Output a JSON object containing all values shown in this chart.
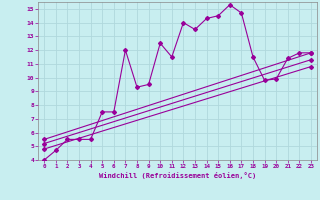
{
  "background_color": "#c8eef0",
  "grid_color": "#b0d8dc",
  "line_color": "#990099",
  "marker": "D",
  "markersize": 2,
  "xlabel": "Windchill (Refroidissement éolien,°C)",
  "xlim": [
    -0.5,
    23.5
  ],
  "ylim": [
    4,
    15.5
  ],
  "yticks": [
    4,
    5,
    6,
    7,
    8,
    9,
    10,
    11,
    12,
    13,
    14,
    15
  ],
  "xticks": [
    0,
    1,
    2,
    3,
    4,
    5,
    6,
    7,
    8,
    9,
    10,
    11,
    12,
    13,
    14,
    15,
    16,
    17,
    18,
    19,
    20,
    21,
    22,
    23
  ],
  "series1_x": [
    0,
    1,
    2,
    3,
    4,
    5,
    6,
    7,
    8,
    9,
    10,
    11,
    12,
    13,
    14,
    15,
    16,
    17,
    18,
    19,
    20,
    21,
    22,
    23
  ],
  "series1_y": [
    4.0,
    4.7,
    5.5,
    5.5,
    5.5,
    7.5,
    7.5,
    12.0,
    9.3,
    9.5,
    12.5,
    11.5,
    14.0,
    13.5,
    14.3,
    14.5,
    15.3,
    14.7,
    11.5,
    9.8,
    9.9,
    11.4,
    11.8,
    11.8
  ],
  "series2_x": [
    0,
    23
  ],
  "series2_y": [
    5.5,
    11.8
  ],
  "series3_x": [
    0,
    23
  ],
  "series3_y": [
    5.2,
    11.3
  ],
  "series4_x": [
    0,
    23
  ],
  "series4_y": [
    4.8,
    10.8
  ]
}
